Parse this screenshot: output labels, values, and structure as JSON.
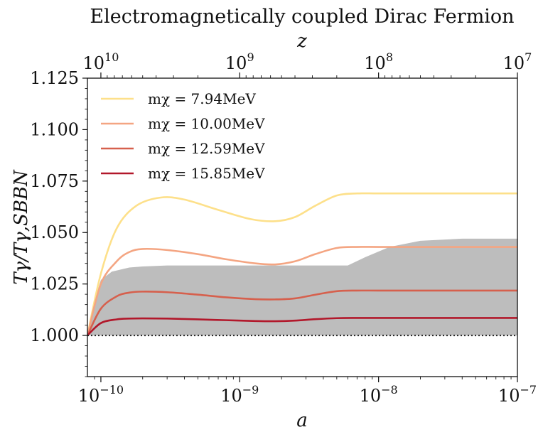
{
  "chart_data": {
    "type": "line",
    "title": "Electromagnetically coupled Dirac Fermion",
    "xlabel": "a",
    "ylabel": "Tγ/Tγ,SBBN",
    "top_xlabel": "z",
    "x_scale": "log",
    "xlim": [
      8e-11,
      1e-07
    ],
    "ylim": [
      0.98,
      1.125
    ],
    "y_ticks": [
      1.0,
      1.025,
      1.05,
      1.075,
      1.1,
      1.125
    ],
    "y_tick_labels": [
      "1.000",
      "1.025",
      "1.050",
      "1.075",
      "1.100",
      "1.125"
    ],
    "x_ticks": [
      1e-10,
      1e-09,
      1e-08,
      1e-07
    ],
    "x_tick_labels": [
      "10−10",
      "10−9",
      "10−8",
      "10−7"
    ],
    "top_ticks": [
      10000000000.0,
      1000000000.0,
      100000000.0,
      10000000.0
    ],
    "top_tick_labels": [
      "1010",
      "109",
      "108",
      "107"
    ],
    "legend_position": "top-left",
    "reference_line": {
      "y": 1.0,
      "style": "dotted",
      "color": "#222222"
    },
    "band": {
      "color": "#bdbdbd",
      "x": [
        8e-11,
        8.8e-11,
        1e-10,
        1.2e-10,
        1.6e-10,
        2e-10,
        3e-10,
        5e-10,
        1e-09,
        2e-09,
        4e-09,
        6e-09,
        8e-09,
        1.2e-08,
        2e-08,
        4e-08,
        1e-07
      ],
      "lower": [
        1.0,
        1.0,
        1.0,
        1.0,
        1.0,
        1.0,
        1.0,
        1.0,
        1.0,
        1.0,
        1.0,
        1.0,
        1.0,
        1.0,
        1.0,
        1.0,
        1.0
      ],
      "upper": [
        1.0,
        1.015,
        1.027,
        1.031,
        1.033,
        1.0335,
        1.034,
        1.034,
        1.034,
        1.034,
        1.034,
        1.034,
        1.038,
        1.043,
        1.046,
        1.047,
        1.047
      ]
    },
    "series": [
      {
        "name": "mχ = 7.94MeV",
        "color": "#fde08a",
        "x": [
          8e-11,
          1e-10,
          1.3e-10,
          1.8e-10,
          2.7e-10,
          4e-10,
          7e-10,
          1.2e-09,
          1.8e-09,
          2.5e-09,
          3.5e-09,
          5e-09,
          7e-09,
          1e-08,
          2e-08,
          1e-07
        ],
        "y": [
          1.0,
          1.03,
          1.052,
          1.063,
          1.067,
          1.066,
          1.061,
          1.0565,
          1.0555,
          1.0575,
          1.063,
          1.068,
          1.069,
          1.069,
          1.069,
          1.069
        ]
      },
      {
        "name": "mχ = 10.00MeV",
        "color": "#f4a582",
        "x": [
          8e-11,
          1e-10,
          1.3e-10,
          1.6e-10,
          2e-10,
          3e-10,
          5e-10,
          8e-10,
          1.3e-09,
          1.8e-09,
          2.5e-09,
          3.5e-09,
          5e-09,
          7e-09,
          1e-08,
          2e-08,
          1e-07
        ],
        "y": [
          1.0,
          1.025,
          1.036,
          1.0405,
          1.042,
          1.0415,
          1.0395,
          1.037,
          1.035,
          1.0345,
          1.036,
          1.0395,
          1.0425,
          1.043,
          1.043,
          1.043,
          1.043
        ]
      },
      {
        "name": "mχ = 12.59MeV",
        "color": "#d6604d",
        "x": [
          8e-11,
          1e-10,
          1.3e-10,
          1.6e-10,
          2e-10,
          3e-10,
          5e-10,
          8e-10,
          1.3e-09,
          1.8e-09,
          2.5e-09,
          3.5e-09,
          5e-09,
          7e-09,
          1e-08,
          2e-08,
          1e-07
        ],
        "y": [
          1.0,
          1.013,
          1.019,
          1.0208,
          1.0213,
          1.021,
          1.0198,
          1.0185,
          1.0176,
          1.0175,
          1.018,
          1.0198,
          1.0215,
          1.0218,
          1.0218,
          1.0218,
          1.0218
        ]
      },
      {
        "name": "mχ = 15.85MeV",
        "color": "#b2182b",
        "x": [
          8e-11,
          1e-10,
          1.3e-10,
          1.6e-10,
          2e-10,
          3e-10,
          5e-10,
          8e-10,
          1.3e-09,
          1.8e-09,
          2.5e-09,
          3.5e-09,
          5e-09,
          7e-09,
          1e-08,
          2e-08,
          1e-07
        ],
        "y": [
          1.0,
          1.006,
          1.0078,
          1.0082,
          1.0083,
          1.0082,
          1.0078,
          1.0074,
          1.007,
          1.0069,
          1.0072,
          1.0079,
          1.0084,
          1.0085,
          1.0085,
          1.0085,
          1.0085
        ]
      }
    ]
  }
}
